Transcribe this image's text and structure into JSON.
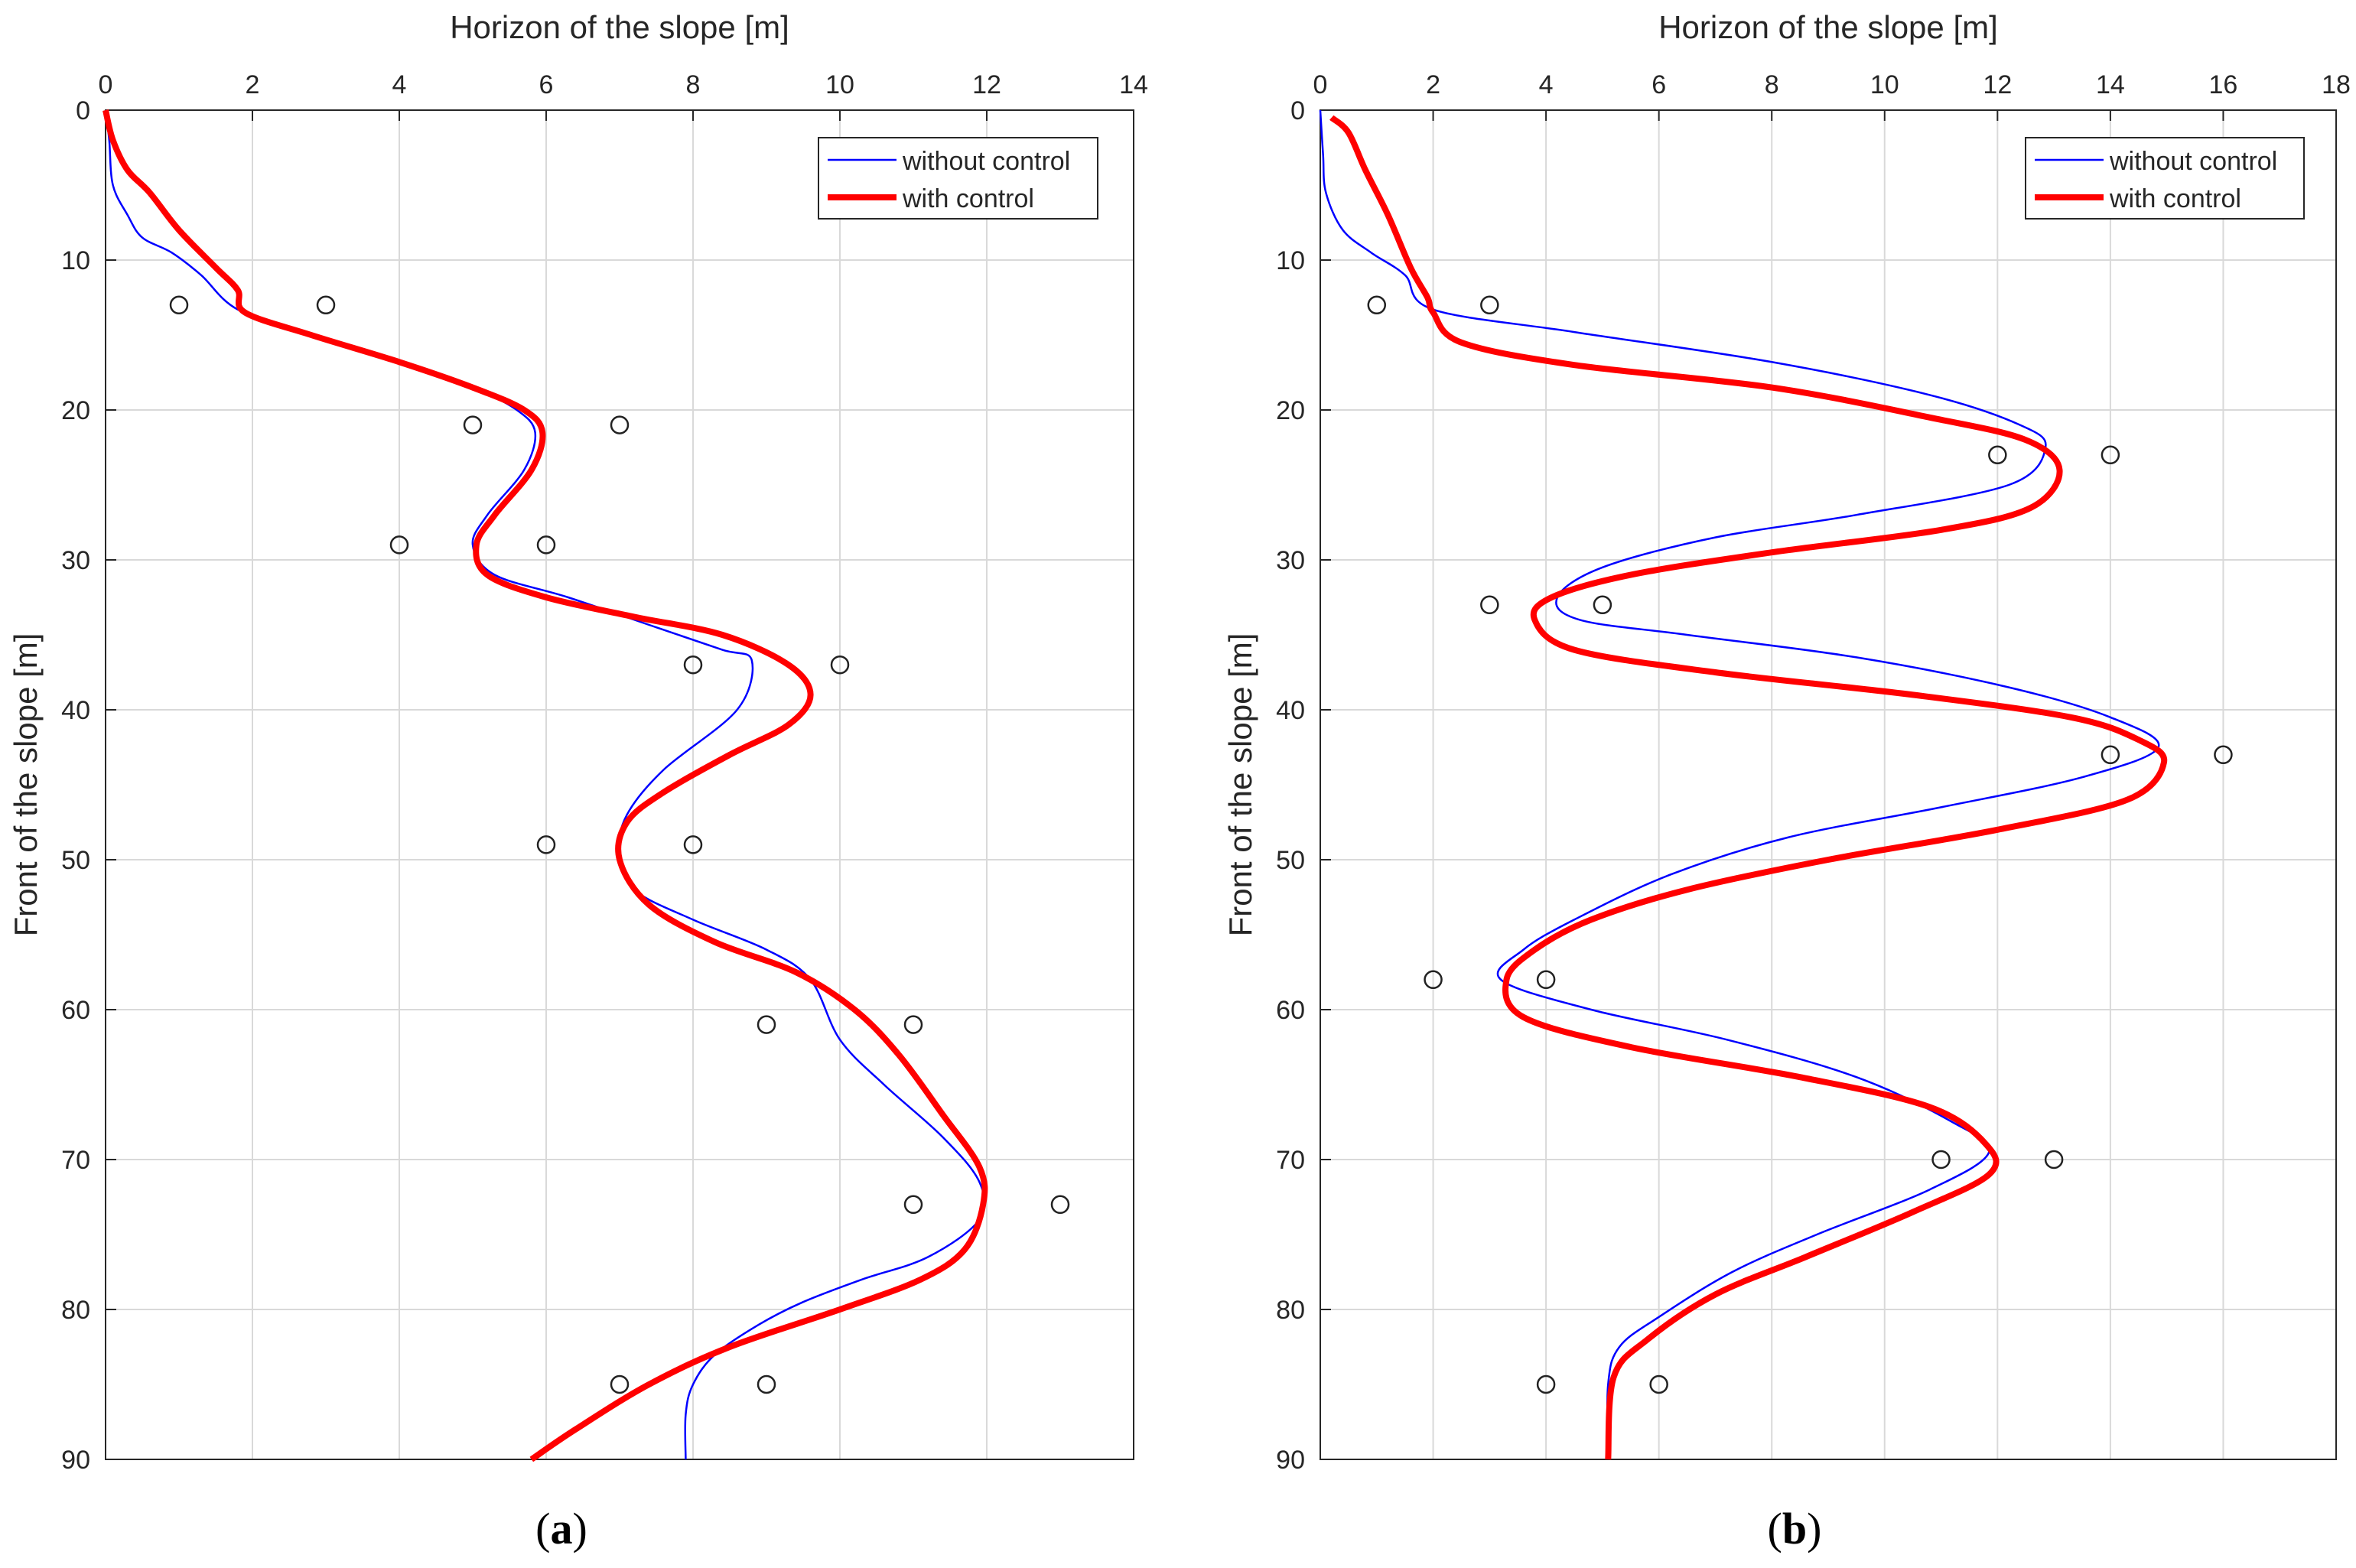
{
  "chart_data": [
    {
      "type": "line",
      "panel": "a",
      "subfigure_label": {
        "open": "(",
        "letter": "a",
        "close": ")"
      },
      "xlabel": "Horizon of the slope [m]",
      "ylabel": "Front of the slope [m]",
      "xlim": [
        0,
        14
      ],
      "ylim": [
        0,
        90
      ],
      "x_axis_position": "top",
      "y_axis_direction": "reversed",
      "xticks": [
        0,
        2,
        4,
        6,
        8,
        10,
        12,
        14
      ],
      "yticks": [
        0,
        10,
        20,
        30,
        40,
        50,
        60,
        70,
        80,
        90
      ],
      "grid": true,
      "legend": {
        "position": "top-right",
        "entries": [
          "without control",
          "with control"
        ]
      },
      "series": [
        {
          "name": "without control",
          "color": "#0000ff",
          "style": "thin",
          "points": [
            [
              0,
              0
            ],
            [
              0.05,
              2
            ],
            [
              0.1,
              5
            ],
            [
              0.3,
              7
            ],
            [
              0.5,
              8.5
            ],
            [
              0.9,
              9.5
            ],
            [
              1.3,
              11
            ],
            [
              1.8,
              13.3
            ],
            [
              2.8,
              15
            ],
            [
              4.0,
              16.8
            ],
            [
              5.0,
              18.5
            ],
            [
              5.6,
              20
            ],
            [
              5.85,
              21.5
            ],
            [
              5.7,
              24
            ],
            [
              5.2,
              27
            ],
            [
              5.0,
              29
            ],
            [
              5.3,
              31
            ],
            [
              6.3,
              32.5
            ],
            [
              7.5,
              34.5
            ],
            [
              8.4,
              36
            ],
            [
              8.8,
              36.7
            ],
            [
              8.6,
              40
            ],
            [
              7.6,
              44
            ],
            [
              7.1,
              47
            ],
            [
              7.0,
              49.5
            ],
            [
              7.2,
              52
            ],
            [
              8.0,
              54
            ],
            [
              9.0,
              56
            ],
            [
              9.6,
              58
            ],
            [
              10.0,
              62
            ],
            [
              10.6,
              65
            ],
            [
              11.4,
              68.5
            ],
            [
              11.9,
              71.5
            ],
            [
              11.9,
              74
            ],
            [
              11.2,
              76.5
            ],
            [
              10.3,
              78
            ],
            [
              9.5,
              79.5
            ],
            [
              8.9,
              81
            ],
            [
              8.3,
              83
            ],
            [
              8.0,
              85
            ],
            [
              7.9,
              87
            ],
            [
              7.9,
              90
            ]
          ]
        },
        {
          "name": "with control",
          "color": "#ff0000",
          "style": "thick",
          "points": [
            [
              0,
              0
            ],
            [
              0.1,
              2
            ],
            [
              0.3,
              4
            ],
            [
              0.6,
              5.5
            ],
            [
              1.0,
              8
            ],
            [
              1.5,
              10.5
            ],
            [
              1.8,
              12
            ],
            [
              1.9,
              13.5
            ],
            [
              2.8,
              15
            ],
            [
              4.0,
              16.8
            ],
            [
              5.0,
              18.5
            ],
            [
              5.7,
              20
            ],
            [
              5.95,
              21.5
            ],
            [
              5.8,
              24
            ],
            [
              5.3,
              27
            ],
            [
              5.05,
              29
            ],
            [
              5.2,
              31
            ],
            [
              6.0,
              32.5
            ],
            [
              7.2,
              33.8
            ],
            [
              8.4,
              35
            ],
            [
              9.3,
              37
            ],
            [
              9.6,
              39
            ],
            [
              9.3,
              41
            ],
            [
              8.5,
              43
            ],
            [
              7.6,
              45.5
            ],
            [
              7.1,
              47.5
            ],
            [
              7.0,
              50
            ],
            [
              7.4,
              53
            ],
            [
              8.3,
              55.5
            ],
            [
              9.4,
              57.5
            ],
            [
              10.2,
              60
            ],
            [
              10.8,
              63
            ],
            [
              11.4,
              67
            ],
            [
              11.9,
              70.5
            ],
            [
              11.95,
              73
            ],
            [
              11.7,
              76
            ],
            [
              11.1,
              78
            ],
            [
              10.0,
              80
            ],
            [
              8.5,
              82.5
            ],
            [
              7.4,
              85
            ],
            [
              6.4,
              88
            ],
            [
              5.8,
              90
            ]
          ]
        }
      ],
      "scatter": {
        "marker": "open-circle",
        "points": [
          [
            1,
            13
          ],
          [
            3,
            13
          ],
          [
            5,
            21
          ],
          [
            7,
            21
          ],
          [
            4,
            29
          ],
          [
            6,
            29
          ],
          [
            8,
            37
          ],
          [
            10,
            37
          ],
          [
            6,
            49
          ],
          [
            8,
            49
          ],
          [
            9,
            61
          ],
          [
            11,
            61
          ],
          [
            11,
            73
          ],
          [
            13,
            73
          ],
          [
            7,
            85
          ],
          [
            9,
            85
          ]
        ]
      }
    },
    {
      "type": "line",
      "panel": "b",
      "subfigure_label": {
        "open": "(",
        "letter": "b",
        "close": ")"
      },
      "xlabel": "Horizon of the slope [m]",
      "ylabel": "Front of the slope [m]",
      "xlim": [
        0,
        18
      ],
      "ylim": [
        0,
        90
      ],
      "x_axis_position": "top",
      "y_axis_direction": "reversed",
      "xticks": [
        0,
        2,
        4,
        6,
        8,
        10,
        12,
        14,
        16,
        18
      ],
      "yticks": [
        0,
        10,
        20,
        30,
        40,
        50,
        60,
        70,
        80,
        90
      ],
      "grid": true,
      "legend": {
        "position": "top-right",
        "entries": [
          "without control",
          "with control"
        ]
      },
      "series": [
        {
          "name": "without control",
          "color": "#0000ff",
          "style": "thin",
          "points": [
            [
              0,
              0
            ],
            [
              0.05,
              3
            ],
            [
              0.1,
              5.5
            ],
            [
              0.4,
              8
            ],
            [
              0.9,
              9.5
            ],
            [
              1.5,
              11
            ],
            [
              2.0,
              13.3
            ],
            [
              4.5,
              14.8
            ],
            [
              8.0,
              16.8
            ],
            [
              10.8,
              19
            ],
            [
              12.4,
              21
            ],
            [
              12.85,
              22.5
            ],
            [
              12.2,
              25
            ],
            [
              9.5,
              27
            ],
            [
              7.0,
              28.5
            ],
            [
              5.0,
              30.5
            ],
            [
              4.2,
              32.5
            ],
            [
              4.6,
              34
            ],
            [
              6.5,
              35
            ],
            [
              9.5,
              36.5
            ],
            [
              12.2,
              38.5
            ],
            [
              14.0,
              40.5
            ],
            [
              14.85,
              42.5
            ],
            [
              13.5,
              44.5
            ],
            [
              11.0,
              46.5
            ],
            [
              8.3,
              48.5
            ],
            [
              6.2,
              51
            ],
            [
              4.5,
              54
            ],
            [
              3.6,
              56
            ],
            [
              3.2,
              58
            ],
            [
              4.8,
              60
            ],
            [
              7.2,
              62
            ],
            [
              9.5,
              64.5
            ],
            [
              11.2,
              67.5
            ],
            [
              11.85,
              69.5
            ],
            [
              10.8,
              72
            ],
            [
              8.8,
              75
            ],
            [
              7.3,
              77.5
            ],
            [
              6.0,
              80.5
            ],
            [
              5.3,
              82.5
            ],
            [
              5.1,
              85
            ],
            [
              5.1,
              90
            ]
          ]
        },
        {
          "name": "with control",
          "color": "#ff0000",
          "style": "thick",
          "points": [
            [
              0.2,
              0.5
            ],
            [
              0.5,
              1.5
            ],
            [
              0.8,
              4
            ],
            [
              1.2,
              7
            ],
            [
              1.6,
              10.5
            ],
            [
              1.9,
              12.5
            ],
            [
              2.0,
              13.5
            ],
            [
              2.5,
              15.5
            ],
            [
              4.5,
              17
            ],
            [
              8.0,
              18.5
            ],
            [
              10.8,
              20.5
            ],
            [
              12.5,
              22
            ],
            [
              13.1,
              24
            ],
            [
              12.6,
              26.5
            ],
            [
              11.0,
              28
            ],
            [
              8.0,
              29.5
            ],
            [
              5.5,
              31
            ],
            [
              4.1,
              32.5
            ],
            [
              3.8,
              34
            ],
            [
              4.5,
              36
            ],
            [
              7.0,
              37.5
            ],
            [
              10.5,
              39
            ],
            [
              13.3,
              40.5
            ],
            [
              14.5,
              42
            ],
            [
              14.95,
              43.5
            ],
            [
              14.3,
              46
            ],
            [
              12.0,
              48
            ],
            [
              9.0,
              50
            ],
            [
              6.5,
              52
            ],
            [
              4.8,
              54
            ],
            [
              3.8,
              56
            ],
            [
              3.3,
              58
            ],
            [
              3.6,
              60.5
            ],
            [
              5.5,
              62.5
            ],
            [
              8.5,
              64.5
            ],
            [
              10.8,
              66.5
            ],
            [
              11.8,
              69
            ],
            [
              11.85,
              71
            ],
            [
              10.5,
              73.5
            ],
            [
              8.6,
              76.5
            ],
            [
              7.0,
              79
            ],
            [
              5.8,
              82
            ],
            [
              5.2,
              84.5
            ],
            [
              5.1,
              90
            ]
          ]
        }
      ],
      "scatter": {
        "marker": "open-circle",
        "points": [
          [
            1,
            13
          ],
          [
            3,
            13
          ],
          [
            12,
            23
          ],
          [
            14,
            23
          ],
          [
            3,
            33
          ],
          [
            5,
            33
          ],
          [
            14,
            43
          ],
          [
            16,
            43
          ],
          [
            2,
            58
          ],
          [
            4,
            58
          ],
          [
            11,
            70
          ],
          [
            13,
            70
          ],
          [
            4,
            85
          ],
          [
            6,
            85
          ]
        ]
      }
    }
  ],
  "colors": {
    "gridline": "#d9d9d9",
    "axis": "#262626"
  }
}
